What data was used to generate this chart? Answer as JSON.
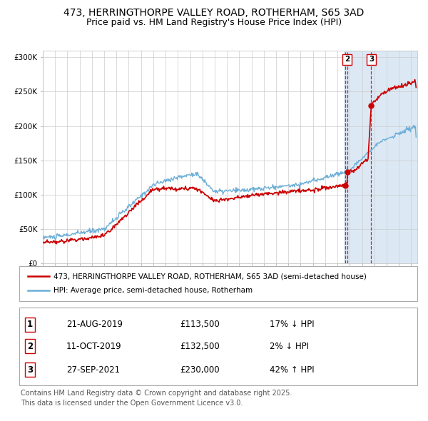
{
  "title_line1": "473, HERRINGTHORPE VALLEY ROAD, ROTHERHAM, S65 3AD",
  "title_line2": "Price paid vs. HM Land Registry's House Price Index (HPI)",
  "hpi_label": "HPI: Average price, semi-detached house, Rotherham",
  "property_label": "473, HERRINGTHORPE VALLEY ROAD, ROTHERHAM, S65 3AD (semi-detached house)",
  "legend_footer": "Contains HM Land Registry data © Crown copyright and database right 2025.\nThis data is licensed under the Open Government Licence v3.0.",
  "sale_points": [
    {
      "date_num": 2019.64,
      "price": 113500,
      "label": "1",
      "date_str": "21-AUG-2019",
      "hpi_diff": "17% ↓ HPI"
    },
    {
      "date_num": 2019.79,
      "price": 132500,
      "label": "2",
      "date_str": "11-OCT-2019",
      "hpi_diff": "2% ↓ HPI"
    },
    {
      "date_num": 2021.75,
      "price": 230000,
      "label": "3",
      "date_str": "27-SEP-2021",
      "hpi_diff": "42% ↑ HPI"
    }
  ],
  "hpi_color": "#6baed6",
  "property_color": "#cc0000",
  "background_color": "#ffffff",
  "highlight_bg_color": "#dce9f5",
  "ylim": [
    0,
    310000
  ],
  "xlim_start": 1995,
  "xlim_end": 2025.5,
  "highlight_start": 2019.5,
  "title_fontsize": 10,
  "subtitle_fontsize": 9,
  "axis_fontsize": 7.5,
  "legend_fontsize": 8,
  "table_fontsize": 8.5,
  "footnote_fontsize": 7
}
